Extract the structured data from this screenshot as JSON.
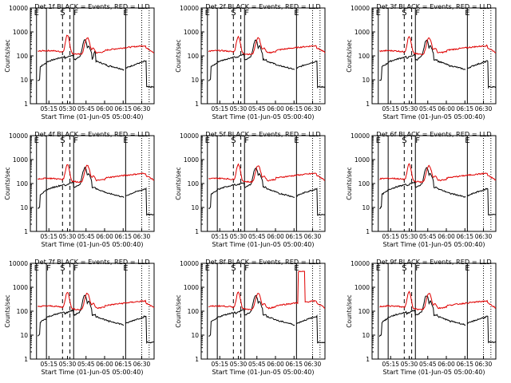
{
  "chart_data": [
    {
      "type": "line",
      "panel": 1,
      "title": "Det 1f BLACK = Events, RED = LLD",
      "xlabel": "Start Time (01-Jun-05 05:00:40)",
      "ylabel": "Counts/sec",
      "yscale": "log",
      "ylim": [
        1,
        10000
      ],
      "xlim": [
        "05:00",
        "06:40"
      ],
      "x_ticks": [
        "05:15",
        "05:30",
        "05:45",
        "06:00",
        "06:15",
        "06:30"
      ],
      "y_ticks": [
        "1",
        "10",
        "100",
        "1000",
        "10000"
      ],
      "markers": [
        "E",
        "S",
        "F",
        "E"
      ],
      "series": [
        {
          "name": "Events",
          "color": "#000000"
        },
        {
          "name": "LLD",
          "color": "#e00000"
        }
      ]
    },
    {
      "type": "line",
      "panel": 2,
      "title": "Det 2f BLACK = Events, RED = LLD",
      "xlabel": "Start Time (01-Jun-05 05:00:40)",
      "ylabel": "Counts/sec",
      "yscale": "log",
      "ylim": [
        1,
        10000
      ],
      "xlim": [
        "05:00",
        "06:40"
      ],
      "x_ticks": [
        "05:15",
        "05:30",
        "05:45",
        "06:00",
        "06:15",
        "06:30"
      ],
      "y_ticks": [
        "1",
        "10",
        "100",
        "1000",
        "10000"
      ],
      "markers": [
        "E",
        "S",
        "F",
        "E"
      ],
      "series": [
        {
          "name": "Events",
          "color": "#000000"
        },
        {
          "name": "LLD",
          "color": "#e00000"
        }
      ]
    },
    {
      "type": "line",
      "panel": 3,
      "title": "Det 3f BLACK = Events, RED = LLD",
      "xlabel": "Start Time (01-Jun-05 05:00:40)",
      "ylabel": "Counts/sec",
      "yscale": "log",
      "ylim": [
        1,
        10000
      ],
      "xlim": [
        "05:00",
        "06:40"
      ],
      "x_ticks": [
        "05:15",
        "05:30",
        "05:45",
        "06:00",
        "06:15",
        "06:30"
      ],
      "y_ticks": [
        "1",
        "10",
        "100",
        "1000",
        "10000"
      ],
      "markers": [
        "E",
        "S",
        "F",
        "E"
      ],
      "series": [
        {
          "name": "Events",
          "color": "#000000"
        },
        {
          "name": "LLD",
          "color": "#e00000"
        }
      ]
    },
    {
      "type": "line",
      "panel": 4,
      "title": "Det 4f BLACK = Events, RED = LLD",
      "xlabel": "Start Time (01-Jun-05 05:00:40)",
      "ylabel": "Counts/sec",
      "yscale": "log",
      "ylim": [
        1,
        10000
      ],
      "xlim": [
        "05:00",
        "06:40"
      ],
      "x_ticks": [
        "05:15",
        "05:30",
        "05:45",
        "06:00",
        "06:15",
        "06:30"
      ],
      "y_ticks": [
        "1",
        "10",
        "100",
        "1000",
        "10000"
      ],
      "markers": [
        "E",
        "S",
        "F",
        "E"
      ],
      "series": [
        {
          "name": "Events",
          "color": "#000000"
        },
        {
          "name": "LLD",
          "color": "#e00000"
        }
      ]
    },
    {
      "type": "line",
      "panel": 5,
      "title": "Det 5f BLACK = Events, RED = LLD",
      "xlabel": "Start Time (01-Jun-05 05:00:40)",
      "ylabel": "Counts/sec",
      "yscale": "log",
      "ylim": [
        1,
        10000
      ],
      "xlim": [
        "05:00",
        "06:40"
      ],
      "x_ticks": [
        "05:15",
        "05:30",
        "05:45",
        "06:00",
        "06:15",
        "06:30"
      ],
      "y_ticks": [
        "1",
        "10",
        "100",
        "1000",
        "10000"
      ],
      "markers": [
        "E",
        "S",
        "F",
        "E"
      ],
      "series": [
        {
          "name": "Events",
          "color": "#000000"
        },
        {
          "name": "LLD",
          "color": "#e00000"
        }
      ]
    },
    {
      "type": "line",
      "panel": 6,
      "title": "Det 6f BLACK = Events, RED = LLD",
      "xlabel": "Start Time (01-Jun-05 05:00:40)",
      "ylabel": "Counts/sec",
      "yscale": "log",
      "ylim": [
        1,
        10000
      ],
      "xlim": [
        "05:00",
        "06:40"
      ],
      "x_ticks": [
        "05:15",
        "05:30",
        "05:45",
        "06:00",
        "06:15",
        "06:30"
      ],
      "y_ticks": [
        "1",
        "10",
        "100",
        "1000",
        "10000"
      ],
      "markers": [
        "E",
        "S",
        "F",
        "E"
      ],
      "series": [
        {
          "name": "Events",
          "color": "#000000"
        },
        {
          "name": "LLD",
          "color": "#e00000"
        }
      ]
    },
    {
      "type": "line",
      "panel": 7,
      "title": "Det 7f BLACK = Events, RED = LLD",
      "xlabel": "Start Time (01-Jun-05 05:00:40)",
      "ylabel": "Counts/sec",
      "yscale": "log",
      "ylim": [
        1,
        10000
      ],
      "xlim": [
        "05:00",
        "06:40"
      ],
      "x_ticks": [
        "05:15",
        "05:30",
        "05:45",
        "06:00",
        "06:15",
        "06:30"
      ],
      "y_ticks": [
        "1",
        "10",
        "100",
        "1000",
        "10000"
      ],
      "markers": [
        "E",
        "F",
        "S",
        "F",
        "E"
      ],
      "series": [
        {
          "name": "Events",
          "color": "#000000"
        },
        {
          "name": "LLD",
          "color": "#e00000"
        }
      ]
    },
    {
      "type": "line",
      "panel": 8,
      "title": "Det 8f BLACK = Events, RED = LLD",
      "xlabel": "Start Time (01-Jun-05 05:00:40)",
      "ylabel": "Counts/sec",
      "yscale": "log",
      "ylim": [
        1,
        10000
      ],
      "xlim": [
        "05:00",
        "06:40"
      ],
      "x_ticks": [
        "05:15",
        "05:30",
        "05:45",
        "06:00",
        "06:15",
        "06:30"
      ],
      "y_ticks": [
        "1",
        "10",
        "100",
        "1000",
        "10000"
      ],
      "markers": [
        "E",
        "S",
        "F",
        "E"
      ],
      "series": [
        {
          "name": "Events",
          "color": "#000000"
        },
        {
          "name": "LLD",
          "color": "#e00000"
        }
      ]
    },
    {
      "type": "line",
      "panel": 9,
      "title": "Det 9f BLACK = Events, RED = LLD",
      "xlabel": "Start Time (01-Jun-05 05:00:40)",
      "ylabel": "Counts/sec",
      "yscale": "log",
      "ylim": [
        1,
        10000
      ],
      "xlim": [
        "05:00",
        "06:40"
      ],
      "x_ticks": [
        "05:15",
        "05:30",
        "05:45",
        "06:00",
        "06:15",
        "06:30"
      ],
      "y_ticks": [
        "1",
        "10",
        "100",
        "1000",
        "10000"
      ],
      "markers": [
        "E",
        "S",
        "F",
        "E"
      ],
      "series": [
        {
          "name": "Events",
          "color": "#000000"
        },
        {
          "name": "LLD",
          "color": "#e00000"
        }
      ]
    }
  ]
}
